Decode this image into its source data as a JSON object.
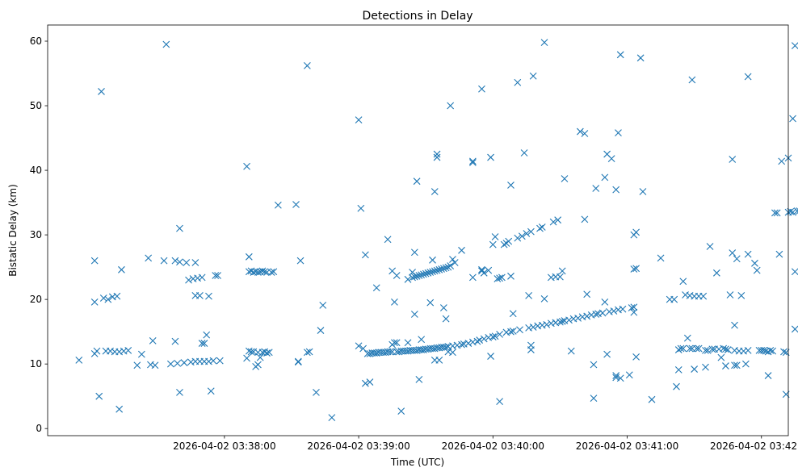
{
  "chart_data": {
    "type": "scatter",
    "title": "Detections in Delay",
    "xlabel": "Time (UTC)",
    "ylabel": "Bistatic Delay (km)",
    "marker": "x",
    "color": "#1f77b4",
    "grid": false,
    "x_unit": "seconds since 2026-04-02 03:37:00 UTC",
    "xlim": [
      -19,
      312
    ],
    "ylim": [
      -1.1,
      62.5
    ],
    "x_ticks": [
      {
        "value": 60,
        "label": "2026-04-02 03:38:00"
      },
      {
        "value": 120,
        "label": "2026-04-02 03:39:00"
      },
      {
        "value": 180,
        "label": "2026-04-02 03:40:00"
      },
      {
        "value": 240,
        "label": "2026-04-02 03:41:00"
      },
      {
        "value": 300,
        "label": "2026-04-02 03:42:00"
      }
    ],
    "y_ticks": [
      0,
      10,
      20,
      30,
      40,
      50,
      60
    ],
    "points": [
      [
        -5,
        10.6
      ],
      [
        2,
        19.6
      ],
      [
        2,
        11.6
      ],
      [
        2,
        26.0
      ],
      [
        3,
        12.0
      ],
      [
        4,
        5.0
      ],
      [
        5,
        52.2
      ],
      [
        6,
        20.2
      ],
      [
        7,
        12.0
      ],
      [
        8,
        20.0
      ],
      [
        9,
        12.0
      ],
      [
        10,
        20.4
      ],
      [
        11,
        11.9
      ],
      [
        12,
        20.5
      ],
      [
        13,
        3.0
      ],
      [
        13,
        11.9
      ],
      [
        14,
        24.6
      ],
      [
        15,
        12.0
      ],
      [
        17,
        12.1
      ],
      [
        21,
        9.8
      ],
      [
        23,
        11.5
      ],
      [
        26,
        26.4
      ],
      [
        27,
        9.9
      ],
      [
        28,
        13.6
      ],
      [
        29,
        9.8
      ],
      [
        33,
        26.0
      ],
      [
        34,
        59.5
      ],
      [
        36,
        10.0
      ],
      [
        38,
        26.0
      ],
      [
        38,
        13.5
      ],
      [
        39,
        10.1
      ],
      [
        40,
        25.8
      ],
      [
        40,
        31.0
      ],
      [
        40,
        5.6
      ],
      [
        42,
        10.2
      ],
      [
        43,
        25.7
      ],
      [
        44,
        23.0
      ],
      [
        45,
        10.3
      ],
      [
        46,
        23.2
      ],
      [
        47,
        25.7
      ],
      [
        47,
        10.4
      ],
      [
        47,
        20.6
      ],
      [
        48,
        23.3
      ],
      [
        49,
        20.6
      ],
      [
        49,
        10.4
      ],
      [
        50,
        23.4
      ],
      [
        50,
        13.2
      ],
      [
        51,
        10.4
      ],
      [
        51,
        13.2
      ],
      [
        52,
        14.5
      ],
      [
        53,
        10.4
      ],
      [
        53,
        20.5
      ],
      [
        54,
        5.8
      ],
      [
        55,
        10.5
      ],
      [
        56,
        23.7
      ],
      [
        57,
        23.7
      ],
      [
        58,
        10.5
      ],
      [
        70,
        40.6
      ],
      [
        70,
        10.9
      ],
      [
        71,
        26.6
      ],
      [
        71,
        24.3
      ],
      [
        71,
        12.0
      ],
      [
        72,
        24.4
      ],
      [
        72,
        11.9
      ],
      [
        73,
        24.2
      ],
      [
        73,
        11.9
      ],
      [
        74,
        24.3
      ],
      [
        74,
        9.6
      ],
      [
        75,
        24.2
      ],
      [
        75,
        9.9
      ],
      [
        75,
        11.8
      ],
      [
        76,
        24.3
      ],
      [
        76,
        11.0
      ],
      [
        77,
        24.4
      ],
      [
        77,
        11.8
      ],
      [
        78,
        24.3
      ],
      [
        78,
        11.9
      ],
      [
        79,
        24.2
      ],
      [
        79,
        11.7
      ],
      [
        80,
        11.8
      ],
      [
        81,
        24.2
      ],
      [
        82,
        24.3
      ],
      [
        84,
        34.6
      ],
      [
        92,
        34.7
      ],
      [
        93,
        10.4
      ],
      [
        93,
        10.3
      ],
      [
        94,
        26.0
      ],
      [
        97,
        56.2
      ],
      [
        97,
        11.8
      ],
      [
        98,
        11.9
      ],
      [
        101,
        5.6
      ],
      [
        103,
        15.2
      ],
      [
        104,
        19.1
      ],
      [
        108,
        1.7
      ],
      [
        120,
        47.8
      ],
      [
        120,
        12.8
      ],
      [
        121,
        34.1
      ],
      [
        122,
        12.4
      ],
      [
        123,
        26.9
      ],
      [
        123,
        7.0
      ],
      [
        124,
        11.6
      ],
      [
        125,
        11.6
      ],
      [
        125,
        7.2
      ],
      [
        126,
        11.7
      ],
      [
        127,
        11.7
      ],
      [
        128,
        21.8
      ],
      [
        128,
        11.7
      ],
      [
        129,
        11.8
      ],
      [
        130,
        11.8
      ],
      [
        131,
        11.8
      ],
      [
        132,
        11.8
      ],
      [
        133,
        29.3
      ],
      [
        133,
        11.9
      ],
      [
        134,
        11.9
      ],
      [
        135,
        24.4
      ],
      [
        135,
        11.9
      ],
      [
        135,
        13.0
      ],
      [
        136,
        19.6
      ],
      [
        136,
        13.3
      ],
      [
        137,
        23.7
      ],
      [
        137,
        11.9
      ],
      [
        137,
        13.3
      ],
      [
        138,
        11.9
      ],
      [
        139,
        2.7
      ],
      [
        139,
        12.0
      ],
      [
        140,
        12.0
      ],
      [
        141,
        12.0
      ],
      [
        142,
        23.1
      ],
      [
        142,
        12.0
      ],
      [
        142,
        13.3
      ],
      [
        143,
        12.1
      ],
      [
        144,
        24.2
      ],
      [
        144,
        23.4
      ],
      [
        144,
        12.1
      ],
      [
        145,
        27.3
      ],
      [
        145,
        17.7
      ],
      [
        145,
        23.5
      ],
      [
        145,
        12.1
      ],
      [
        146,
        38.3
      ],
      [
        146,
        23.6
      ],
      [
        146,
        12.1
      ],
      [
        147,
        7.6
      ],
      [
        147,
        23.7
      ],
      [
        147,
        12.2
      ],
      [
        148,
        23.8
      ],
      [
        148,
        13.8
      ],
      [
        148,
        12.2
      ],
      [
        149,
        23.9
      ],
      [
        149,
        12.2
      ],
      [
        150,
        24.0
      ],
      [
        150,
        12.3
      ],
      [
        151,
        24.1
      ],
      [
        151,
        12.3
      ],
      [
        152,
        19.5
      ],
      [
        152,
        24.2
      ],
      [
        152,
        12.4
      ],
      [
        153,
        26.1
      ],
      [
        153,
        24.3
      ],
      [
        153,
        12.4
      ],
      [
        154,
        36.7
      ],
      [
        154,
        10.6
      ],
      [
        154,
        24.4
      ],
      [
        154,
        12.4
      ],
      [
        155,
        42.0
      ],
      [
        155,
        42.5
      ],
      [
        155,
        24.5
      ],
      [
        155,
        12.5
      ],
      [
        156,
        24.6
      ],
      [
        156,
        10.6
      ],
      [
        156,
        12.5
      ],
      [
        157,
        24.7
      ],
      [
        157,
        12.6
      ],
      [
        158,
        18.7
      ],
      [
        158,
        24.8
      ],
      [
        158,
        12.6
      ],
      [
        159,
        24.9
      ],
      [
        159,
        17.0
      ],
      [
        159,
        12.6
      ],
      [
        160,
        25.0
      ],
      [
        160,
        12.7
      ],
      [
        160,
        11.9
      ],
      [
        161,
        25.2
      ],
      [
        161,
        50.0
      ],
      [
        162,
        26.2
      ],
      [
        162,
        12.8
      ],
      [
        162,
        11.8
      ],
      [
        163,
        25.7
      ],
      [
        164,
        12.9
      ],
      [
        166,
        27.6
      ],
      [
        166,
        13.0
      ],
      [
        167,
        13.1
      ],
      [
        169,
        13.2
      ],
      [
        171,
        41.2
      ],
      [
        171,
        41.4
      ],
      [
        171,
        23.4
      ],
      [
        171,
        13.4
      ],
      [
        173,
        13.5
      ],
      [
        174,
        13.7
      ],
      [
        175,
        52.6
      ],
      [
        175,
        24.4
      ],
      [
        175,
        24.6
      ],
      [
        176,
        13.9
      ],
      [
        176,
        24.1
      ],
      [
        178,
        24.5
      ],
      [
        178,
        14.1
      ],
      [
        179,
        42.0
      ],
      [
        179,
        11.2
      ],
      [
        180,
        28.5
      ],
      [
        180,
        14.2
      ],
      [
        181,
        29.7
      ],
      [
        181,
        14.3
      ],
      [
        182,
        23.2
      ],
      [
        183,
        23.3
      ],
      [
        183,
        14.6
      ],
      [
        183,
        4.2
      ],
      [
        184,
        23.4
      ],
      [
        185,
        28.5
      ],
      [
        186,
        28.7
      ],
      [
        186,
        14.9
      ],
      [
        187,
        29.0
      ],
      [
        188,
        37.7
      ],
      [
        188,
        23.6
      ],
      [
        188,
        15.0
      ],
      [
        189,
        17.8
      ],
      [
        189,
        15.1
      ],
      [
        191,
        29.5
      ],
      [
        191,
        53.6
      ],
      [
        192,
        15.3
      ],
      [
        193,
        29.8
      ],
      [
        194,
        42.7
      ],
      [
        195,
        30.2
      ],
      [
        196,
        20.6
      ],
      [
        196,
        15.6
      ],
      [
        197,
        12.2
      ],
      [
        197,
        12.9
      ],
      [
        197,
        30.5
      ],
      [
        198,
        54.6
      ],
      [
        198,
        15.7
      ],
      [
        200,
        15.9
      ],
      [
        201,
        31.0
      ],
      [
        202,
        31.2
      ],
      [
        202,
        16.0
      ],
      [
        203,
        20.1
      ],
      [
        203,
        59.8
      ],
      [
        204,
        16.1
      ],
      [
        206,
        23.4
      ],
      [
        206,
        16.3
      ],
      [
        207,
        32.0
      ],
      [
        208,
        23.5
      ],
      [
        208,
        16.4
      ],
      [
        209,
        32.3
      ],
      [
        210,
        23.5
      ],
      [
        210,
        16.5
      ],
      [
        211,
        24.4
      ],
      [
        211,
        16.6
      ],
      [
        212,
        38.7
      ],
      [
        212,
        16.7
      ],
      [
        214,
        16.8
      ],
      [
        215,
        12.0
      ],
      [
        216,
        17.0
      ],
      [
        218,
        17.1
      ],
      [
        219,
        46.0
      ],
      [
        220,
        17.3
      ],
      [
        221,
        32.4
      ],
      [
        221,
        45.7
      ],
      [
        222,
        20.8
      ],
      [
        222,
        17.4
      ],
      [
        224,
        17.6
      ],
      [
        225,
        9.9
      ],
      [
        225,
        4.7
      ],
      [
        226,
        37.2
      ],
      [
        226,
        17.7
      ],
      [
        227,
        17.8
      ],
      [
        229,
        17.9
      ],
      [
        230,
        19.6
      ],
      [
        230,
        38.9
      ],
      [
        231,
        11.5
      ],
      [
        231,
        42.5
      ],
      [
        232,
        18.1
      ],
      [
        233,
        41.8
      ],
      [
        234,
        18.2
      ],
      [
        235,
        8.2
      ],
      [
        235,
        37.0
      ],
      [
        235,
        7.9
      ],
      [
        236,
        45.8
      ],
      [
        236,
        18.4
      ],
      [
        237,
        57.9
      ],
      [
        237,
        7.8
      ],
      [
        238,
        18.5
      ],
      [
        241,
        8.3
      ],
      [
        242,
        18.7
      ],
      [
        243,
        18.8
      ],
      [
        243,
        30.0
      ],
      [
        243,
        24.7
      ],
      [
        243,
        18.0
      ],
      [
        244,
        30.4
      ],
      [
        244,
        24.8
      ],
      [
        244,
        11.1
      ],
      [
        246,
        57.4
      ],
      [
        247,
        36.7
      ],
      [
        251,
        4.5
      ],
      [
        255,
        26.4
      ],
      [
        259,
        20.0
      ],
      [
        261,
        20.0
      ],
      [
        262,
        6.5
      ],
      [
        263,
        12.2
      ],
      [
        263,
        9.1
      ],
      [
        264,
        12.4
      ],
      [
        265,
        12.4
      ],
      [
        265,
        22.8
      ],
      [
        266,
        20.7
      ],
      [
        267,
        14.0
      ],
      [
        268,
        12.4
      ],
      [
        268,
        20.6
      ],
      [
        269,
        54.0
      ],
      [
        269,
        12.4
      ],
      [
        270,
        20.5
      ],
      [
        270,
        9.2
      ],
      [
        271,
        12.4
      ],
      [
        272,
        12.4
      ],
      [
        272,
        20.5
      ],
      [
        274,
        20.5
      ],
      [
        275,
        9.5
      ],
      [
        275,
        12.1
      ],
      [
        276,
        12.1
      ],
      [
        277,
        28.2
      ],
      [
        278,
        12.3
      ],
      [
        279,
        12.3
      ],
      [
        280,
        24.1
      ],
      [
        281,
        12.3
      ],
      [
        282,
        11.0
      ],
      [
        283,
        12.4
      ],
      [
        284,
        12.3
      ],
      [
        284,
        9.7
      ],
      [
        285,
        12.2
      ],
      [
        286,
        20.7
      ],
      [
        287,
        27.2
      ],
      [
        287,
        41.7
      ],
      [
        288,
        16.0
      ],
      [
        288,
        12.1
      ],
      [
        288,
        9.8
      ],
      [
        289,
        26.3
      ],
      [
        289,
        9.8
      ],
      [
        290,
        12.0
      ],
      [
        291,
        20.6
      ],
      [
        292,
        12.0
      ],
      [
        293,
        10.0
      ],
      [
        294,
        54.5
      ],
      [
        294,
        12.1
      ],
      [
        294,
        27.0
      ],
      [
        297,
        25.6
      ],
      [
        298,
        24.5
      ],
      [
        299,
        12.1
      ],
      [
        300,
        12.1
      ],
      [
        301,
        12.1
      ],
      [
        302,
        12.0
      ],
      [
        303,
        8.2
      ],
      [
        303,
        11.9
      ],
      [
        304,
        12.1
      ],
      [
        305,
        12.0
      ],
      [
        306,
        33.4
      ],
      [
        307,
        33.4
      ],
      [
        308,
        27.0
      ],
      [
        309,
        41.4
      ],
      [
        310,
        11.9
      ],
      [
        311,
        11.8
      ],
      [
        311,
        5.3
      ],
      [
        312,
        33.5
      ],
      [
        312,
        41.9
      ],
      [
        313,
        33.6
      ],
      [
        314,
        33.5
      ],
      [
        314,
        48.0
      ],
      [
        315,
        59.3
      ],
      [
        315,
        24.3
      ],
      [
        315,
        15.4
      ],
      [
        316,
        33.7
      ],
      [
        317,
        33.7
      ]
    ]
  }
}
